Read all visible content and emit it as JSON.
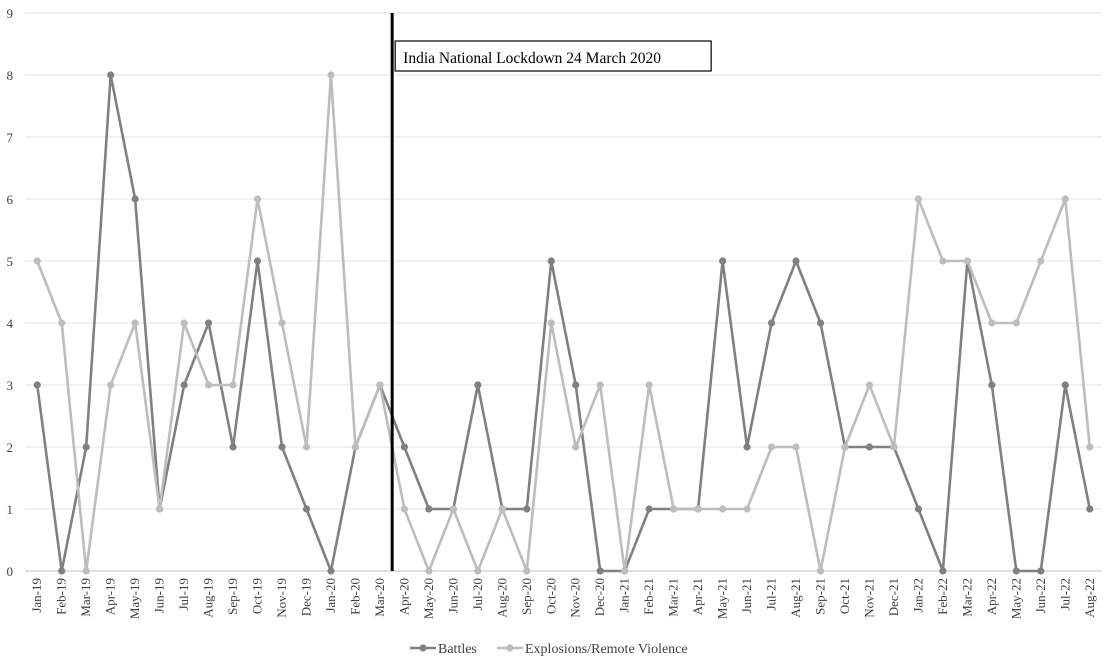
{
  "chart_data": {
    "type": "line",
    "categories": [
      "Jan-19",
      "Feb-19",
      "Mar-19",
      "Apr-19",
      "May-19",
      "Jun-19",
      "Jul-19",
      "Aug-19",
      "Sep-19",
      "Oct-19",
      "Nov-19",
      "Dec-19",
      "Jan-20",
      "Feb-20",
      "Mar-20",
      "Apr-20",
      "May-20",
      "Jun-20",
      "Jul-20",
      "Aug-20",
      "Sep-20",
      "Oct-20",
      "Nov-20",
      "Dec-20",
      "Jan-21",
      "Feb-21",
      "Mar-21",
      "Apr-21",
      "May-21",
      "Jun-21",
      "Jul-21",
      "Aug-21",
      "Sep-21",
      "Oct-21",
      "Nov-21",
      "Dec-21",
      "Jan-22",
      "Feb-22",
      "Mar-22",
      "Apr-22",
      "May-22",
      "Jun-22",
      "Jul-22",
      "Aug-22"
    ],
    "series": [
      {
        "name": "Battles",
        "color": "#808080",
        "values": [
          3,
          0,
          2,
          8,
          6,
          1,
          3,
          4,
          2,
          5,
          2,
          1,
          0,
          2,
          3,
          2,
          1,
          1,
          3,
          1,
          1,
          5,
          3,
          0,
          0,
          1,
          1,
          1,
          5,
          2,
          4,
          5,
          4,
          2,
          2,
          2,
          1,
          0,
          5,
          3,
          0,
          0,
          3,
          1
        ]
      },
      {
        "name": "Explosions/Remote Violence",
        "color": "#bdbdbd",
        "values": [
          5,
          4,
          0,
          3,
          4,
          1,
          4,
          3,
          3,
          6,
          4,
          2,
          8,
          2,
          3,
          1,
          0,
          1,
          0,
          1,
          0,
          4,
          2,
          3,
          0,
          3,
          1,
          1,
          1,
          1,
          2,
          2,
          0,
          2,
          3,
          2,
          6,
          5,
          5,
          4,
          4,
          5,
          6,
          2
        ]
      }
    ],
    "ylim": [
      0,
      9
    ],
    "yticks": [
      "0",
      "1",
      "2",
      "3",
      "4",
      "5",
      "6",
      "7",
      "8",
      "9"
    ],
    "grid": true,
    "legend_position": "bottom",
    "annotation": {
      "text": "India National Lockdown 24 March 2020",
      "after_category": "Mar-20"
    }
  }
}
